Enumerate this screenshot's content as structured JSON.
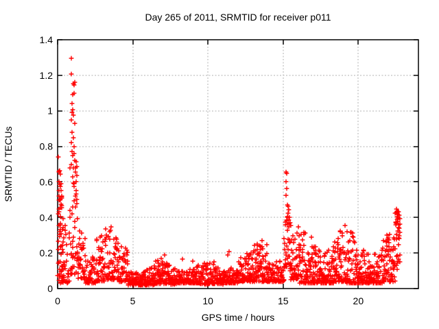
{
  "window": {
    "background": "#ffffff"
  },
  "chart_data": {
    "type": "scatter",
    "title": "Day 265 of 2011, SRMTID for receiver p011",
    "xlabel": "GPS time / hours",
    "ylabel": "SRMTID / TECUs",
    "xlim": [
      0,
      24
    ],
    "ylim": [
      0,
      1.4
    ],
    "grid": true,
    "legend": "none",
    "xticks": {
      "values": [
        0,
        5,
        10,
        15,
        20
      ],
      "labels": [
        "0",
        "5",
        "10",
        "15",
        "20"
      ]
    },
    "yticks": {
      "values": [
        0,
        0.2,
        0.4,
        0.6,
        0.8,
        1.0,
        1.2,
        1.4
      ],
      "labels": [
        "0",
        "0.2",
        "0.4",
        "0.6",
        "0.8",
        "1",
        "1.2",
        "1.4"
      ]
    },
    "marker": {
      "shape": "plus",
      "color": "#ff0000",
      "size": 7,
      "stroke_width": 1.4
    },
    "colors": {
      "grid": "#b0b0b0",
      "axis": "#000000",
      "background": "#ffffff",
      "text": "#000000"
    },
    "seed": 1337,
    "x_data_end": 22.8,
    "notable_points": [
      [
        0.05,
        0.74
      ],
      [
        0.07,
        0.66
      ],
      [
        0.1,
        0.655
      ],
      [
        0.13,
        0.665
      ],
      [
        0.16,
        0.645
      ],
      [
        0.09,
        0.6
      ],
      [
        0.12,
        0.585
      ],
      [
        0.18,
        0.575
      ],
      [
        0.21,
        0.55
      ],
      [
        0.11,
        0.52
      ],
      [
        0.19,
        0.5
      ],
      [
        0.24,
        0.475
      ],
      [
        0.26,
        0.455
      ],
      [
        0.89,
        1.296
      ],
      [
        0.91,
        1.207
      ],
      [
        1.05,
        1.155
      ],
      [
        1.1,
        1.145
      ],
      [
        1.13,
        1.16
      ],
      [
        1.08,
        1.1
      ],
      [
        1.02,
        1.09
      ],
      [
        0.98,
        1.04
      ],
      [
        1.0,
        1.005
      ],
      [
        0.95,
        0.99
      ],
      [
        1.06,
        0.975
      ],
      [
        0.93,
        0.95
      ],
      [
        1.12,
        0.93
      ],
      [
        0.97,
        0.88
      ],
      [
        1.03,
        0.85
      ],
      [
        0.9,
        0.82
      ],
      [
        1.08,
        0.8
      ],
      [
        0.94,
        0.77
      ],
      [
        1.0,
        0.75
      ],
      [
        1.15,
        0.72
      ],
      [
        0.92,
        0.7
      ],
      [
        1.05,
        0.68
      ],
      [
        1.18,
        0.655
      ],
      [
        0.99,
        0.63
      ],
      [
        1.22,
        0.6
      ],
      [
        1.1,
        0.575
      ],
      [
        1.25,
        0.55
      ],
      [
        1.2,
        0.52
      ],
      [
        1.3,
        0.5
      ],
      [
        1.28,
        0.48
      ],
      [
        6.9,
        0.17
      ],
      [
        7.1,
        0.19
      ],
      [
        8.3,
        0.165
      ],
      [
        9.0,
        0.155
      ],
      [
        10.4,
        0.15
      ],
      [
        11.3,
        0.19
      ],
      [
        11.4,
        0.21
      ],
      [
        12.2,
        0.175
      ],
      [
        12.8,
        0.19
      ],
      [
        13.3,
        0.25
      ],
      [
        13.6,
        0.27
      ],
      [
        13.9,
        0.245
      ],
      [
        15.18,
        0.655
      ],
      [
        15.22,
        0.648
      ],
      [
        15.2,
        0.6
      ],
      [
        15.24,
        0.565
      ],
      [
        15.21,
        0.525
      ],
      [
        15.3,
        0.47
      ],
      [
        15.35,
        0.462
      ],
      [
        15.38,
        0.445
      ],
      [
        15.33,
        0.425
      ],
      [
        15.28,
        0.405
      ],
      [
        15.42,
        0.4
      ],
      [
        15.25,
        0.385
      ],
      [
        15.45,
        0.372
      ],
      [
        15.5,
        0.355
      ],
      [
        22.55,
        0.447
      ],
      [
        22.6,
        0.437
      ],
      [
        22.58,
        0.428
      ],
      [
        22.62,
        0.418
      ],
      [
        22.57,
        0.405
      ],
      [
        22.63,
        0.397
      ],
      [
        22.6,
        0.388
      ],
      [
        22.65,
        0.378
      ],
      [
        22.68,
        0.432
      ],
      [
        22.72,
        0.412
      ],
      [
        22.75,
        0.392
      ],
      [
        22.52,
        0.368
      ],
      [
        22.66,
        0.36
      ]
    ],
    "density_bands": [
      [
        0.02,
        0.4,
        40,
        0.03,
        0.5,
        1.4
      ],
      [
        0.05,
        0.3,
        14,
        0.3,
        0.62,
        1.0
      ],
      [
        0.3,
        0.8,
        30,
        0.03,
        0.42,
        1.6
      ],
      [
        0.8,
        1.35,
        45,
        0.08,
        0.92,
        1.9
      ],
      [
        1.35,
        1.85,
        40,
        0.05,
        0.46,
        1.7
      ],
      [
        1.85,
        2.55,
        55,
        0.03,
        0.28,
        2.0
      ],
      [
        2.55,
        3.15,
        50,
        0.04,
        0.4,
        1.9
      ],
      [
        3.15,
        3.95,
        60,
        0.05,
        0.37,
        1.8
      ],
      [
        3.95,
        4.7,
        55,
        0.04,
        0.3,
        2.0
      ],
      [
        4.7,
        5.3,
        50,
        0.02,
        0.15,
        1.6
      ],
      [
        5.3,
        6.5,
        95,
        0.02,
        0.13,
        1.6
      ],
      [
        6.5,
        8.0,
        120,
        0.025,
        0.16,
        1.8
      ],
      [
        8.0,
        9.5,
        115,
        0.03,
        0.15,
        1.8
      ],
      [
        9.5,
        11.0,
        115,
        0.025,
        0.15,
        1.8
      ],
      [
        11.0,
        12.0,
        80,
        0.03,
        0.18,
        1.8
      ],
      [
        12.0,
        13.0,
        85,
        0.04,
        0.21,
        1.9
      ],
      [
        13.0,
        14.1,
        95,
        0.04,
        0.27,
        2.0
      ],
      [
        14.1,
        15.05,
        70,
        0.04,
        0.24,
        2.0
      ],
      [
        15.05,
        15.45,
        32,
        0.12,
        0.55,
        1.3
      ],
      [
        15.45,
        16.1,
        55,
        0.05,
        0.37,
        1.9
      ],
      [
        16.1,
        17.3,
        105,
        0.03,
        0.35,
        2.3
      ],
      [
        17.3,
        18.4,
        95,
        0.03,
        0.35,
        2.3
      ],
      [
        18.4,
        19.2,
        70,
        0.04,
        0.36,
        2.1
      ],
      [
        19.2,
        20.6,
        120,
        0.03,
        0.33,
        2.3
      ],
      [
        20.6,
        21.6,
        90,
        0.03,
        0.31,
        2.2
      ],
      [
        21.6,
        22.45,
        75,
        0.04,
        0.34,
        1.8
      ],
      [
        22.45,
        22.8,
        28,
        0.1,
        0.44,
        1.0
      ]
    ]
  }
}
